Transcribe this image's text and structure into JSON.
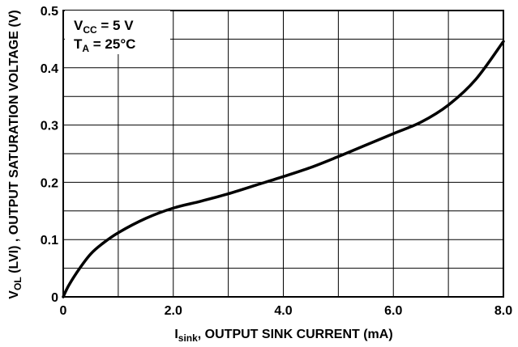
{
  "chart_data": {
    "type": "line",
    "xlabel": {
      "main": "I",
      "sub": "sink",
      "rest": ", OUTPUT SINK CURRENT (mA)"
    },
    "ylabel": {
      "main": "V",
      "sub": "OL",
      "rest": " (LVI) , OUTPUT SATURATION VOLTAGE (V)"
    },
    "xlim": [
      0,
      8
    ],
    "ylim": [
      0,
      0.5
    ],
    "x_ticks": [
      {
        "value": 0,
        "label": "0"
      },
      {
        "value": 2,
        "label": "2.0"
      },
      {
        "value": 4,
        "label": "4.0"
      },
      {
        "value": 6,
        "label": "6.0"
      },
      {
        "value": 8,
        "label": "8.0"
      }
    ],
    "y_ticks": [
      {
        "value": 0,
        "label": "0"
      },
      {
        "value": 0.1,
        "label": "0.1"
      },
      {
        "value": 0.2,
        "label": "0.2"
      },
      {
        "value": 0.3,
        "label": "0.3"
      },
      {
        "value": 0.4,
        "label": "0.4"
      },
      {
        "value": 0.5,
        "label": "0.5"
      }
    ],
    "x_grid_step": 1,
    "y_grid_step": 0.05,
    "grid": true,
    "conditions": [
      {
        "main": "V",
        "sub": "CC",
        "rest": " = 5 V"
      },
      {
        "main": "T",
        "sub": "A",
        "rest": " = 25°C"
      }
    ],
    "series": [
      {
        "x": [
          0,
          0.1,
          0.3,
          0.5,
          0.7,
          1.0,
          1.5,
          2.0,
          2.5,
          3.0,
          3.5,
          4.0,
          4.5,
          5.0,
          5.5,
          6.0,
          6.5,
          7.0,
          7.5,
          8.0
        ],
        "y": [
          0,
          0.02,
          0.05,
          0.075,
          0.092,
          0.112,
          0.137,
          0.155,
          0.167,
          0.18,
          0.195,
          0.21,
          0.226,
          0.245,
          0.265,
          0.285,
          0.305,
          0.335,
          0.38,
          0.446
        ]
      }
    ]
  }
}
